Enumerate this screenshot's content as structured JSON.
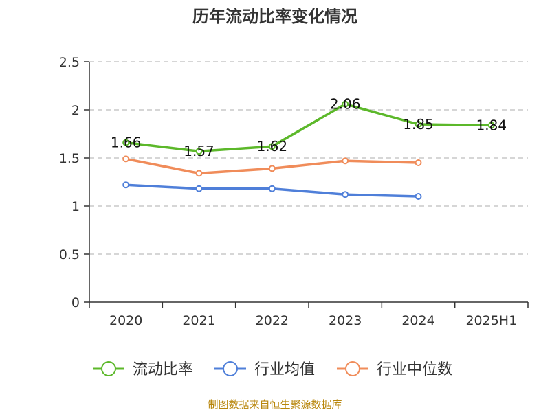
{
  "chart_data": {
    "type": "line",
    "title": "历年流动比率变化情况",
    "categories": [
      "2020",
      "2021",
      "2022",
      "2023",
      "2024",
      "2025H1"
    ],
    "ylim": [
      0,
      2.5
    ],
    "yticks": [
      "0",
      "0.5",
      "1",
      "1.5",
      "2",
      "2.5"
    ],
    "grid": true,
    "legend_position": "bottom",
    "series": [
      {
        "name": "流动比率",
        "color": "#5cb82a",
        "values": [
          1.66,
          1.57,
          1.62,
          2.06,
          1.85,
          1.84
        ],
        "labels": [
          "1.66",
          "1.57",
          "1.62",
          "2.06",
          "1.85",
          "1.84"
        ]
      },
      {
        "name": "行业均值",
        "color": "#4f7fd9",
        "values": [
          1.22,
          1.18,
          1.18,
          1.12,
          1.1,
          null
        ]
      },
      {
        "name": "行业中位数",
        "color": "#f08c5a",
        "values": [
          1.49,
          1.34,
          1.39,
          1.47,
          1.45,
          null
        ]
      }
    ]
  },
  "source": "制图数据来自恒生聚源数据库"
}
